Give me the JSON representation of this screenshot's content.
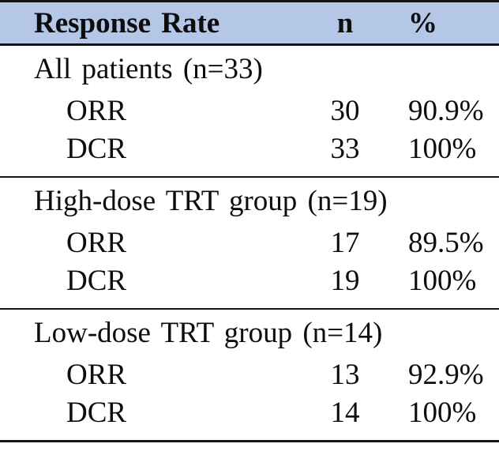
{
  "colors": {
    "header_bg": "#b4c7e7",
    "rule": "#141414",
    "text": "#0d0d0d"
  },
  "table": {
    "header": {
      "col_label": "Response Rate",
      "col_n": "n",
      "col_pct": "%"
    },
    "sections": [
      {
        "title": "All patients (n=33)",
        "rows": [
          {
            "label": "ORR",
            "n": "30",
            "pct": "90.9%"
          },
          {
            "label": "DCR",
            "n": "33",
            "pct": "100%"
          }
        ]
      },
      {
        "title": "High-dose TRT group (n=19)",
        "rows": [
          {
            "label": "ORR",
            "n": "17",
            "pct": "89.5%"
          },
          {
            "label": "DCR",
            "n": "19",
            "pct": "100%"
          }
        ]
      },
      {
        "title": "Low-dose TRT group (n=14)",
        "rows": [
          {
            "label": "ORR",
            "n": "13",
            "pct": "92.9%"
          },
          {
            "label": "DCR",
            "n": "14",
            "pct": "100%"
          }
        ]
      }
    ]
  },
  "chart_data": {
    "type": "table",
    "title": "Response Rate",
    "columns": [
      "Response Rate",
      "n",
      "%"
    ],
    "rows": [
      [
        "All patients (n=33)",
        "",
        ""
      ],
      [
        "ORR",
        30,
        "90.9%"
      ],
      [
        "DCR",
        33,
        "100%"
      ],
      [
        "High-dose TRT group (n=19)",
        "",
        ""
      ],
      [
        "ORR",
        17,
        "89.5%"
      ],
      [
        "DCR",
        19,
        "100%"
      ],
      [
        "Low-dose TRT group (n=14)",
        "",
        ""
      ],
      [
        "ORR",
        13,
        "92.9%"
      ],
      [
        "DCR",
        14,
        "100%"
      ]
    ]
  }
}
